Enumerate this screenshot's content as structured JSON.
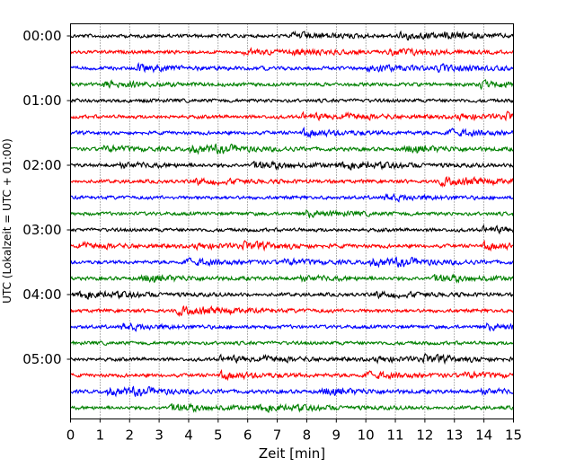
{
  "chart_data": {
    "type": "line",
    "subtype": "helicorder",
    "title": "",
    "xlabel": "Zeit  [min]",
    "ylabel": "UTC (Lokalzeit = UTC + 01:00)",
    "xlim": [
      0,
      15
    ],
    "x_ticks": [
      "0",
      "1",
      "2",
      "3",
      "4",
      "5",
      "6",
      "7",
      "8",
      "9",
      "10",
      "11",
      "12",
      "13",
      "14",
      "15"
    ],
    "y_ticks": [
      "00:00",
      "01:00",
      "02:00",
      "03:00",
      "04:00",
      "05:00"
    ],
    "traces_per_hour": 4,
    "trace_minutes": 15,
    "start": "00:00",
    "end": "06:00",
    "trace_colors": [
      "#000000",
      "#ff0000",
      "#0000ff",
      "#008000"
    ],
    "vertical_grid": "dotted, every minute",
    "signal": "continuous low-amplitude background noise, no distinct events"
  }
}
